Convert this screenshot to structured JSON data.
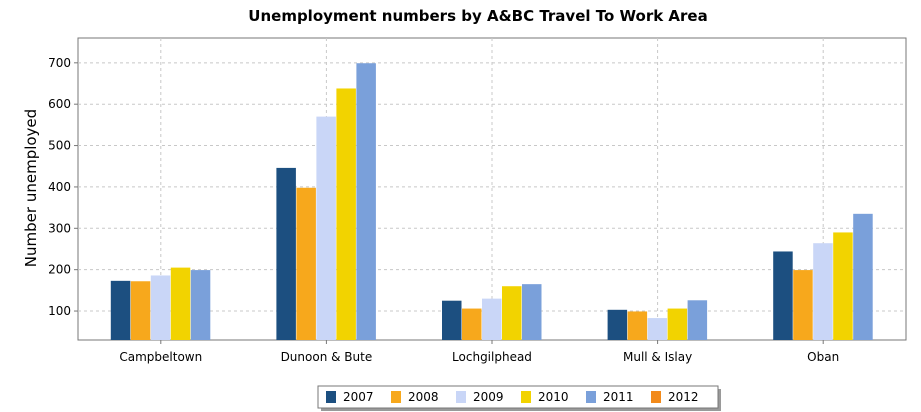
{
  "chart_data": {
    "type": "bar",
    "title": "Unemployment numbers by A&BC Travel To Work Area",
    "xlabel": "",
    "ylabel": "Number unemployed",
    "ylim": [
      30,
      760
    ],
    "yticks": [
      100,
      200,
      300,
      400,
      500,
      600,
      700
    ],
    "grid": true,
    "legend_position": "bottom",
    "categories": [
      "Campbeltown",
      "Dunoon & Bute",
      "Lochgilphead",
      "Mull & Islay",
      "Oban"
    ],
    "series": [
      {
        "name": "2007",
        "color": "#1c4f80",
        "values": [
          173,
          446,
          125,
          103,
          244
        ]
      },
      {
        "name": "2008",
        "color": "#f7a81c",
        "values": [
          172,
          398,
          106,
          99,
          199
        ]
      },
      {
        "name": "2009",
        "color": "#c9d6f7",
        "values": [
          186,
          570,
          130,
          83,
          264
        ]
      },
      {
        "name": "2010",
        "color": "#f2d300",
        "values": [
          205,
          638,
          160,
          106,
          290
        ]
      },
      {
        "name": "2011",
        "color": "#7aa0da",
        "values": [
          199,
          699,
          165,
          126,
          335
        ]
      },
      {
        "name": "2012",
        "color": "#f28a1a",
        "values": [
          null,
          null,
          null,
          null,
          null
        ]
      }
    ]
  }
}
